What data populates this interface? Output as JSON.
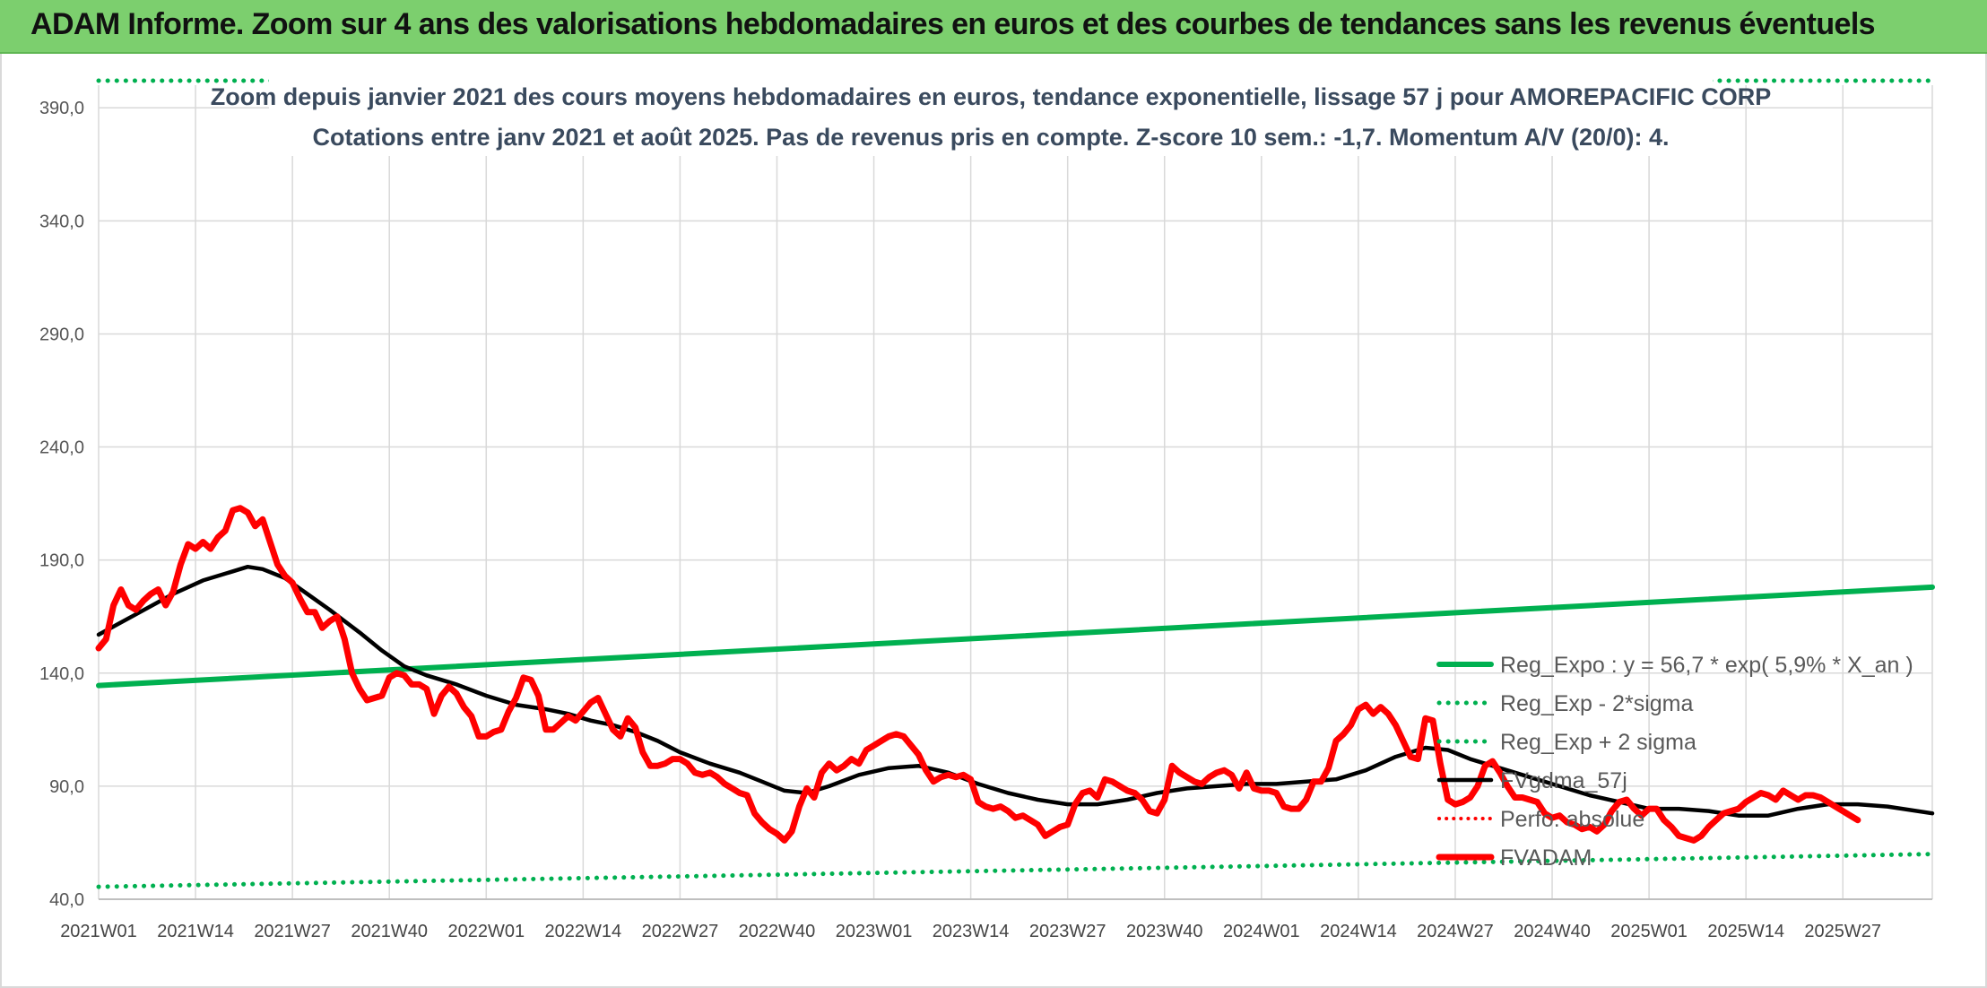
{
  "banner": {
    "title": "ADAM Informe. Zoom sur 4 ans des valorisations hebdomadaires en euros et des courbes de tendances sans les revenus éventuels"
  },
  "colors": {
    "banner": "#7ccf6e",
    "reg_expo": "#00b050",
    "reg_bands": "#00b050",
    "smooth": "#000000",
    "perfo": "#ff0000",
    "price": "#ff0000",
    "grid": "#d9d9d9"
  },
  "chart_data": {
    "type": "line",
    "title": "Zoom depuis janvier 2021 des cours moyens hebdomadaires en euros, tendance exponentielle, lissage 57 j pour AMOREPACIFIC CORP",
    "subtitle": "Cotations entre janv 2021 et août 2025. Pas de revenus pris en compte. Z-score 10 sem.: -1,7. Momentum A/V (20/0): 4.",
    "ylim": [
      40,
      400
    ],
    "y_ticks": [
      "40,0",
      "90,0",
      "140,0",
      "190,0",
      "240,0",
      "290,0",
      "340,0",
      "390,0"
    ],
    "y_tick_values": [
      40,
      90,
      140,
      190,
      240,
      290,
      340,
      390
    ],
    "x_ticks": [
      "2021W01",
      "2021W14",
      "2021W27",
      "2021W40",
      "2022W01",
      "2022W14",
      "2022W27",
      "2022W40",
      "2023W01",
      "2023W14",
      "2023W27",
      "2023W40",
      "2024W01",
      "2024W14",
      "2024W27",
      "2024W40",
      "2025W01",
      "2025W14",
      "2025W27"
    ],
    "x_tick_weeks": [
      0,
      13,
      26,
      39,
      52,
      65,
      78,
      91,
      104,
      117,
      130,
      143,
      156,
      169,
      182,
      195,
      208,
      221,
      234
    ],
    "x_max_week": 246,
    "grid": true,
    "legend_position": "right",
    "series": [
      {
        "name": "Reg_Expo : y = 56,7 * exp( 5,9% *  X_an )",
        "style": "solid-green",
        "points": [
          [
            0,
            134.5
          ],
          [
            246,
            178
          ]
        ]
      },
      {
        "name": "Reg_Exp - 2*sigma",
        "style": "dotted-green",
        "points": [
          [
            0,
            45.5
          ],
          [
            246,
            60
          ]
        ]
      },
      {
        "name": "Reg_Exp + 2 sigma",
        "style": "dotted-green",
        "points": [
          [
            0,
            402
          ],
          [
            246,
            402
          ]
        ]
      },
      {
        "name": "FVgdma_57j",
        "style": "solid-black",
        "points": [
          [
            0,
            157
          ],
          [
            5,
            166
          ],
          [
            10,
            175
          ],
          [
            14,
            181
          ],
          [
            18,
            185
          ],
          [
            20,
            187
          ],
          [
            22,
            186
          ],
          [
            25,
            182
          ],
          [
            28,
            175
          ],
          [
            31,
            168
          ],
          [
            35,
            158
          ],
          [
            38,
            150
          ],
          [
            41,
            143
          ],
          [
            44,
            139
          ],
          [
            48,
            135
          ],
          [
            52,
            130
          ],
          [
            56,
            126
          ],
          [
            60,
            124
          ],
          [
            63,
            122
          ],
          [
            66,
            119
          ],
          [
            69,
            117
          ],
          [
            72,
            114
          ],
          [
            75,
            110
          ],
          [
            78,
            105
          ],
          [
            82,
            100
          ],
          [
            86,
            96
          ],
          [
            89,
            92
          ],
          [
            92,
            88
          ],
          [
            95,
            87
          ],
          [
            98,
            90
          ],
          [
            102,
            95
          ],
          [
            106,
            98
          ],
          [
            110,
            99
          ],
          [
            114,
            96
          ],
          [
            118,
            91
          ],
          [
            122,
            87
          ],
          [
            126,
            84
          ],
          [
            130,
            82
          ],
          [
            134,
            82
          ],
          [
            138,
            84
          ],
          [
            142,
            87
          ],
          [
            146,
            89
          ],
          [
            150,
            90
          ],
          [
            154,
            91
          ],
          [
            158,
            91
          ],
          [
            162,
            92
          ],
          [
            166,
            93
          ],
          [
            170,
            97
          ],
          [
            174,
            103
          ],
          [
            178,
            107
          ],
          [
            181,
            106
          ],
          [
            184,
            102
          ],
          [
            188,
            98
          ],
          [
            192,
            94
          ],
          [
            196,
            90
          ],
          [
            200,
            86
          ],
          [
            204,
            83
          ],
          [
            208,
            80
          ],
          [
            212,
            80
          ],
          [
            216,
            79
          ],
          [
            220,
            77
          ],
          [
            224,
            77
          ],
          [
            228,
            80
          ],
          [
            232,
            82
          ],
          [
            236,
            82
          ],
          [
            240,
            81
          ],
          [
            246,
            78
          ]
        ]
      },
      {
        "name": "Perfo. absolue",
        "style": "dotted-red",
        "points": []
      },
      {
        "name": "FVADAM",
        "style": "solid-red-thick",
        "points": [
          [
            0,
            151
          ],
          [
            1,
            155
          ],
          [
            2,
            170
          ],
          [
            3,
            177
          ],
          [
            4,
            170
          ],
          [
            5,
            168
          ],
          [
            6,
            172
          ],
          [
            7,
            175
          ],
          [
            8,
            177
          ],
          [
            9,
            170
          ],
          [
            10,
            176
          ],
          [
            11,
            188
          ],
          [
            12,
            197
          ],
          [
            13,
            195
          ],
          [
            14,
            198
          ],
          [
            15,
            195
          ],
          [
            16,
            200
          ],
          [
            17,
            203
          ],
          [
            18,
            212
          ],
          [
            19,
            213
          ],
          [
            20,
            211
          ],
          [
            21,
            205
          ],
          [
            22,
            208
          ],
          [
            23,
            198
          ],
          [
            24,
            188
          ],
          [
            25,
            183
          ],
          [
            26,
            180
          ],
          [
            27,
            173
          ],
          [
            28,
            167
          ],
          [
            29,
            167
          ],
          [
            30,
            160
          ],
          [
            31,
            163
          ],
          [
            32,
            165
          ],
          [
            33,
            155
          ],
          [
            34,
            140
          ],
          [
            35,
            133
          ],
          [
            36,
            128
          ],
          [
            37,
            129
          ],
          [
            38,
            130
          ],
          [
            39,
            138
          ],
          [
            40,
            140
          ],
          [
            41,
            139
          ],
          [
            42,
            135
          ],
          [
            43,
            135
          ],
          [
            44,
            133
          ],
          [
            45,
            122
          ],
          [
            46,
            130
          ],
          [
            47,
            134
          ],
          [
            48,
            131
          ],
          [
            49,
            125
          ],
          [
            50,
            121
          ],
          [
            51,
            112
          ],
          [
            52,
            112
          ],
          [
            53,
            114
          ],
          [
            54,
            115
          ],
          [
            55,
            123
          ],
          [
            56,
            129
          ],
          [
            57,
            138
          ],
          [
            58,
            137
          ],
          [
            59,
            130
          ],
          [
            60,
            115
          ],
          [
            61,
            115
          ],
          [
            62,
            118
          ],
          [
            63,
            121
          ],
          [
            64,
            119
          ],
          [
            65,
            123
          ],
          [
            66,
            127
          ],
          [
            67,
            129
          ],
          [
            68,
            122
          ],
          [
            69,
            115
          ],
          [
            70,
            112
          ],
          [
            71,
            120
          ],
          [
            72,
            116
          ],
          [
            73,
            105
          ],
          [
            74,
            99
          ],
          [
            75,
            99
          ],
          [
            76,
            100
          ],
          [
            77,
            102
          ],
          [
            78,
            102
          ],
          [
            79,
            100
          ],
          [
            80,
            96
          ],
          [
            81,
            95
          ],
          [
            82,
            96
          ],
          [
            83,
            94
          ],
          [
            84,
            91
          ],
          [
            85,
            89
          ],
          [
            86,
            87
          ],
          [
            87,
            86
          ],
          [
            88,
            78
          ],
          [
            89,
            74
          ],
          [
            90,
            71
          ],
          [
            91,
            69
          ],
          [
            92,
            66
          ],
          [
            93,
            70
          ],
          [
            94,
            81
          ],
          [
            95,
            89
          ],
          [
            96,
            85
          ],
          [
            97,
            96
          ],
          [
            98,
            100
          ],
          [
            99,
            97
          ],
          [
            100,
            99
          ],
          [
            101,
            102
          ],
          [
            102,
            100
          ],
          [
            103,
            106
          ],
          [
            104,
            108
          ],
          [
            105,
            110
          ],
          [
            106,
            112
          ],
          [
            107,
            113
          ],
          [
            108,
            112
          ],
          [
            109,
            108
          ],
          [
            110,
            104
          ],
          [
            111,
            97
          ],
          [
            112,
            92
          ],
          [
            113,
            94
          ],
          [
            114,
            95
          ],
          [
            115,
            94
          ],
          [
            116,
            95
          ],
          [
            117,
            93
          ],
          [
            118,
            83
          ],
          [
            119,
            81
          ],
          [
            120,
            80
          ],
          [
            121,
            81
          ],
          [
            122,
            79
          ],
          [
            123,
            76
          ],
          [
            124,
            77
          ],
          [
            125,
            75
          ],
          [
            126,
            73
          ],
          [
            127,
            68
          ],
          [
            128,
            70
          ],
          [
            129,
            72
          ],
          [
            130,
            73
          ],
          [
            131,
            82
          ],
          [
            132,
            87
          ],
          [
            133,
            88
          ],
          [
            134,
            85
          ],
          [
            135,
            93
          ],
          [
            136,
            92
          ],
          [
            137,
            90
          ],
          [
            138,
            88
          ],
          [
            139,
            87
          ],
          [
            140,
            84
          ],
          [
            141,
            79
          ],
          [
            142,
            78
          ],
          [
            143,
            84
          ],
          [
            144,
            99
          ],
          [
            145,
            96
          ],
          [
            146,
            94
          ],
          [
            147,
            92
          ],
          [
            148,
            91
          ],
          [
            149,
            94
          ],
          [
            150,
            96
          ],
          [
            151,
            97
          ],
          [
            152,
            95
          ],
          [
            153,
            89
          ],
          [
            154,
            96
          ],
          [
            155,
            89
          ],
          [
            156,
            88
          ],
          [
            157,
            88
          ],
          [
            158,
            87
          ],
          [
            159,
            81
          ],
          [
            160,
            80
          ],
          [
            161,
            80
          ],
          [
            162,
            84
          ],
          [
            163,
            92
          ],
          [
            164,
            92
          ],
          [
            165,
            98
          ],
          [
            166,
            110
          ],
          [
            167,
            113
          ],
          [
            168,
            117
          ],
          [
            169,
            124
          ],
          [
            170,
            126
          ],
          [
            171,
            122
          ],
          [
            172,
            125
          ],
          [
            173,
            122
          ],
          [
            174,
            117
          ],
          [
            175,
            110
          ],
          [
            176,
            103
          ],
          [
            177,
            102
          ],
          [
            178,
            120
          ],
          [
            179,
            119
          ],
          [
            180,
            100
          ],
          [
            181,
            84
          ],
          [
            182,
            82
          ],
          [
            183,
            83
          ],
          [
            184,
            85
          ],
          [
            185,
            90
          ],
          [
            186,
            99
          ],
          [
            187,
            101
          ],
          [
            188,
            96
          ],
          [
            189,
            90
          ],
          [
            190,
            85
          ],
          [
            191,
            85
          ],
          [
            192,
            84
          ],
          [
            193,
            83
          ],
          [
            194,
            78
          ],
          [
            195,
            76
          ],
          [
            196,
            77
          ],
          [
            197,
            74
          ],
          [
            198,
            73
          ],
          [
            199,
            71
          ],
          [
            200,
            72
          ],
          [
            201,
            70
          ],
          [
            202,
            73
          ],
          [
            203,
            79
          ],
          [
            204,
            83
          ],
          [
            205,
            84
          ],
          [
            206,
            80
          ],
          [
            207,
            77
          ],
          [
            208,
            80
          ],
          [
            209,
            80
          ],
          [
            210,
            75
          ],
          [
            211,
            72
          ],
          [
            212,
            68
          ],
          [
            213,
            67
          ],
          [
            214,
            66
          ],
          [
            215,
            68
          ],
          [
            216,
            72
          ],
          [
            217,
            75
          ],
          [
            218,
            78
          ],
          [
            219,
            79
          ],
          [
            220,
            80
          ],
          [
            221,
            83
          ],
          [
            222,
            85
          ],
          [
            223,
            87
          ],
          [
            224,
            86
          ],
          [
            225,
            84
          ],
          [
            226,
            88
          ],
          [
            227,
            86
          ],
          [
            228,
            84
          ],
          [
            229,
            86
          ],
          [
            230,
            86
          ],
          [
            231,
            85
          ],
          [
            232,
            83
          ],
          [
            233,
            81
          ],
          [
            234,
            79
          ],
          [
            235,
            77
          ],
          [
            236,
            75
          ]
        ]
      }
    ]
  }
}
